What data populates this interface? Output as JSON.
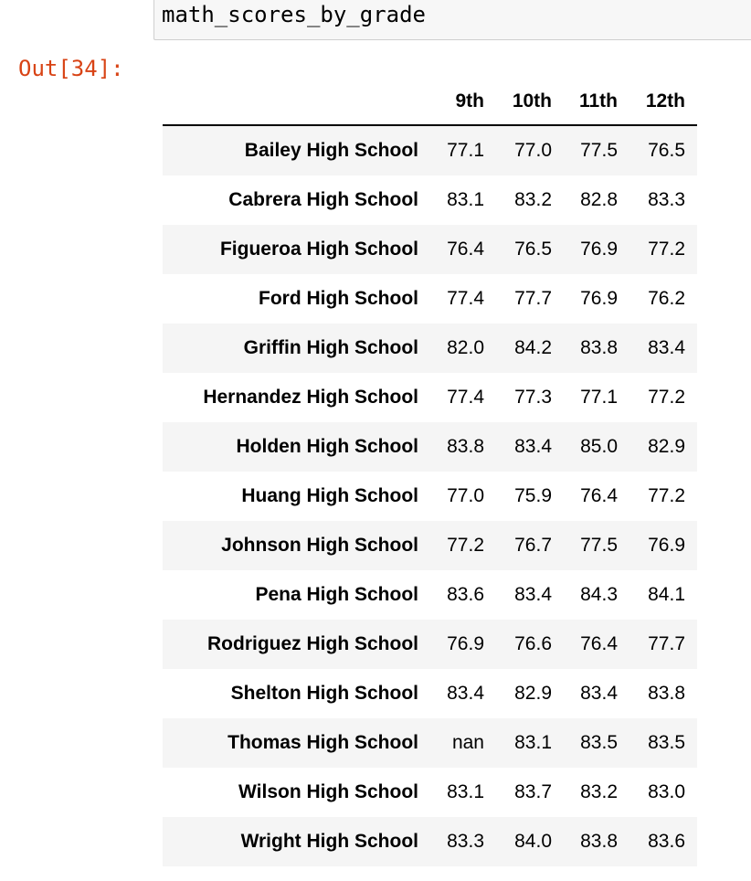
{
  "input_cell": {
    "code": "math_scores_by_grade"
  },
  "output_prompt": "Out[34]:",
  "table": {
    "columns": [
      "9th",
      "10th",
      "11th",
      "12th"
    ],
    "rows": [
      {
        "school": "Bailey High School",
        "values": [
          "77.1",
          "77.0",
          "77.5",
          "76.5"
        ]
      },
      {
        "school": "Cabrera High School",
        "values": [
          "83.1",
          "83.2",
          "82.8",
          "83.3"
        ]
      },
      {
        "school": "Figueroa High School",
        "values": [
          "76.4",
          "76.5",
          "76.9",
          "77.2"
        ]
      },
      {
        "school": "Ford High School",
        "values": [
          "77.4",
          "77.7",
          "76.9",
          "76.2"
        ]
      },
      {
        "school": "Griffin High School",
        "values": [
          "82.0",
          "84.2",
          "83.8",
          "83.4"
        ]
      },
      {
        "school": "Hernandez High School",
        "values": [
          "77.4",
          "77.3",
          "77.1",
          "77.2"
        ]
      },
      {
        "school": "Holden High School",
        "values": [
          "83.8",
          "83.4",
          "85.0",
          "82.9"
        ]
      },
      {
        "school": "Huang High School",
        "values": [
          "77.0",
          "75.9",
          "76.4",
          "77.2"
        ]
      },
      {
        "school": "Johnson High School",
        "values": [
          "77.2",
          "76.7",
          "77.5",
          "76.9"
        ]
      },
      {
        "school": "Pena High School",
        "values": [
          "83.6",
          "83.4",
          "84.3",
          "84.1"
        ]
      },
      {
        "school": "Rodriguez High School",
        "values": [
          "76.9",
          "76.6",
          "76.4",
          "77.7"
        ]
      },
      {
        "school": "Shelton High School",
        "values": [
          "83.4",
          "82.9",
          "83.4",
          "83.8"
        ]
      },
      {
        "school": "Thomas High School",
        "values": [
          "nan",
          "83.1",
          "83.5",
          "83.5"
        ]
      },
      {
        "school": "Wilson High School",
        "values": [
          "83.1",
          "83.7",
          "83.2",
          "83.0"
        ]
      },
      {
        "school": "Wright High School",
        "values": [
          "83.3",
          "84.0",
          "83.8",
          "83.6"
        ]
      }
    ]
  },
  "colors": {
    "out_prompt": "#d84315",
    "stripe": "#f5f5f5",
    "input_bg": "#f7f7f7",
    "input_border": "#cfcfcf"
  }
}
